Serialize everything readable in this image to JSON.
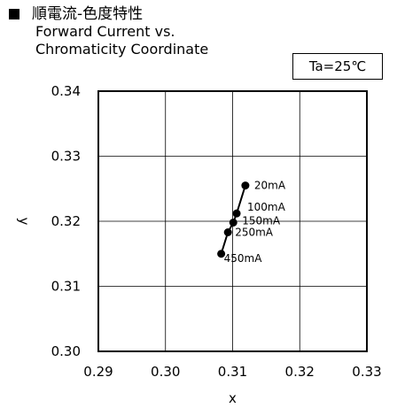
{
  "title": {
    "jp": "順電流-色度特性",
    "en_line1": "Forward Current vs.",
    "en_line2": "Chromaticity Coordinate"
  },
  "condition": "Ta=25℃",
  "chart_data": {
    "type": "line",
    "title": "順電流-色度特性 / Forward Current vs. Chromaticity Coordinate",
    "xlabel": "x",
    "ylabel": "y",
    "xlim": [
      0.29,
      0.33
    ],
    "ylim": [
      0.3,
      0.34
    ],
    "x_ticks": [
      "0.29",
      "0.30",
      "0.31",
      "0.32",
      "0.33"
    ],
    "y_ticks": [
      "0.30",
      "0.31",
      "0.32",
      "0.33",
      "0.34"
    ],
    "grid": true,
    "series": [
      {
        "points": [
          {
            "label": "20mA",
            "x": 0.3119,
            "y": 0.3255
          },
          {
            "label": "100mA",
            "x": 0.3106,
            "y": 0.3212
          },
          {
            "label": "150mA",
            "x": 0.3101,
            "y": 0.3198
          },
          {
            "label": "250mA",
            "x": 0.3093,
            "y": 0.3183
          },
          {
            "label": "450mA",
            "x": 0.3083,
            "y": 0.315
          }
        ]
      }
    ]
  }
}
